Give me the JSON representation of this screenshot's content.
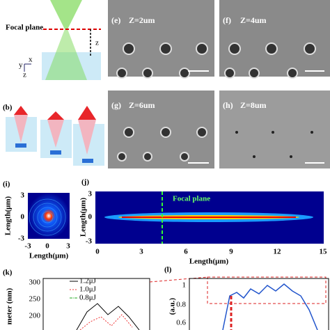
{
  "panel_a": {
    "focal_label": "Focal plane",
    "z_label": "z",
    "axes": {
      "y": "y",
      "x": "x",
      "z": "z"
    }
  },
  "panel_b": {
    "label": "(b)"
  },
  "sem": [
    {
      "label": "(e)",
      "caption": "Z=2um"
    },
    {
      "label": "(f)",
      "caption": "Z=4um"
    },
    {
      "label": "(g)",
      "caption": "Z=6um"
    },
    {
      "label": "(h)",
      "caption": "Z=8um"
    }
  ],
  "panel_i": {
    "label": "(i)",
    "ylabel": "Length(μm)",
    "xlabel": "Length(μm)",
    "yticks": [
      "3",
      "0",
      "-3"
    ],
    "xticks": [
      "-3",
      "0",
      "3"
    ]
  },
  "panel_j": {
    "label": "(j)",
    "annotation": "Focal plane",
    "ylabel": "Length(μm)",
    "xlabel": "Length(μm)",
    "yticks": [
      "3",
      "0",
      "-3"
    ],
    "xticks": [
      "0",
      "3",
      "6",
      "9",
      "12",
      "15"
    ]
  },
  "panel_k": {
    "label": "(k)",
    "ylabel": "meter (nm)",
    "yticks": [
      "300",
      "250",
      "200"
    ],
    "legend": [
      "1.2μJ",
      "1.0μJ",
      "0.8μJ"
    ]
  },
  "panel_l": {
    "label": "(l)",
    "ylabel": "(a.u.)",
    "yticks": [
      "1",
      "0.8",
      "0.6"
    ]
  }
}
